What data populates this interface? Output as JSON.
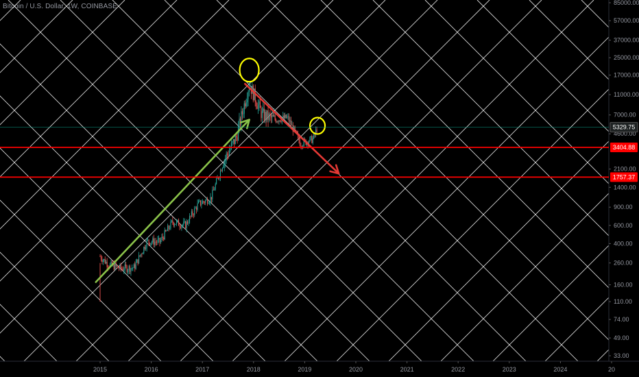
{
  "symbol_title": "Bitcoin / U.S. Dollar, 1W, COINBASE",
  "colors": {
    "background": "#000000",
    "grid_lines": "#ffffff",
    "axis_text": "#9598a1",
    "candle_up": "#26a69a",
    "candle_down": "#ef5350",
    "support_lines": "#ff0000",
    "uptrend_arrow": "#8bc34a",
    "downtrend_arrow": "#e53935",
    "highlight_circles": "#ffff00",
    "current_price_tag": "#089981"
  },
  "chart_data": {
    "type": "candlestick",
    "title": "Bitcoin / U.S. Dollar, 1W, COINBASE",
    "scale": "log",
    "xlabel": "",
    "ylabel": "",
    "x_tick_labels": [
      "2015",
      "2016",
      "2017",
      "2018",
      "2019",
      "2020",
      "2021",
      "2022",
      "2023",
      "2024",
      "20"
    ],
    "y_tick_labels": [
      "85000.00",
      "57000.00",
      "37000.00",
      "25000.00",
      "17000.00",
      "11000.00",
      "7000.00",
      "4600.00",
      "2100.00",
      "1400.00",
      "900.00",
      "600.00",
      "400.00",
      "260.00",
      "160.00",
      "110.00",
      "74.00",
      "49.00",
      "33.00"
    ],
    "ylim": [
      30,
      100000
    ],
    "xlim": [
      "2014-06",
      "2025-06"
    ],
    "price_series_approx": [
      {
        "date": "2015-01",
        "close": 300
      },
      {
        "date": "2015-03",
        "close": 250
      },
      {
        "date": "2015-06",
        "close": 230
      },
      {
        "date": "2015-09",
        "close": 235
      },
      {
        "date": "2015-12",
        "close": 420
      },
      {
        "date": "2016-03",
        "close": 415
      },
      {
        "date": "2016-06",
        "close": 650
      },
      {
        "date": "2016-09",
        "close": 600
      },
      {
        "date": "2016-12",
        "close": 960
      },
      {
        "date": "2017-03",
        "close": 1100
      },
      {
        "date": "2017-06",
        "close": 2500
      },
      {
        "date": "2017-09",
        "close": 4300
      },
      {
        "date": "2017-12",
        "close": 14000
      },
      {
        "date": "2018-03",
        "close": 7000
      },
      {
        "date": "2018-06",
        "close": 6300
      },
      {
        "date": "2018-09",
        "close": 6600
      },
      {
        "date": "2018-12",
        "close": 3700
      },
      {
        "date": "2019-03",
        "close": 4100
      },
      {
        "date": "2019-04",
        "close": 5330
      }
    ],
    "horizontal_levels": [
      {
        "label": "5329.75",
        "value": 5329.75,
        "kind": "current-price"
      },
      {
        "label": "3404.88",
        "value": 3404.88,
        "kind": "support"
      },
      {
        "label": "1757.37",
        "value": 1757.37,
        "kind": "support"
      }
    ],
    "annotations": [
      {
        "kind": "arrow",
        "from": {
          "date": "2014-12",
          "value": 170
        },
        "to": {
          "date": "2017-12",
          "value": 6300
        },
        "color": "uptrend"
      },
      {
        "kind": "arrow",
        "from": {
          "date": "2017-11",
          "value": 14000
        },
        "to": {
          "date": "2019-09",
          "value": 1900
        },
        "color": "downtrend"
      },
      {
        "kind": "circle",
        "at": {
          "date": "2017-12",
          "value": 19000
        }
      },
      {
        "kind": "circle",
        "at": {
          "date": "2019-04",
          "value": 5500
        }
      }
    ],
    "grid": "diagonal",
    "legend": "none"
  }
}
